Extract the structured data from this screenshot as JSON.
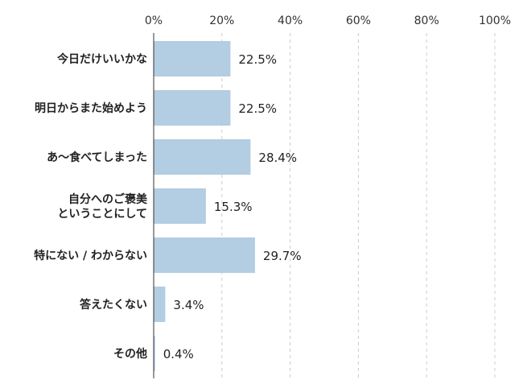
{
  "chart_data": {
    "type": "bar",
    "orientation": "horizontal",
    "title": "",
    "xlabel": "",
    "ylabel": "",
    "xlim": [
      0,
      100
    ],
    "ticks": [
      "0%",
      "20%",
      "40%",
      "60%",
      "80%",
      "100%"
    ],
    "tick_values": [
      0,
      20,
      40,
      60,
      80,
      100
    ],
    "categories": [
      [
        "今日だけいいかな"
      ],
      [
        "明日からまた始めよう"
      ],
      [
        "あ〜食べてしまった"
      ],
      [
        "自分へのご褒美",
        "ということにして"
      ],
      [
        "特にない / わからない"
      ],
      [
        "答えたくない"
      ],
      [
        "その他"
      ]
    ],
    "values": [
      22.5,
      22.5,
      28.4,
      15.3,
      29.7,
      3.4,
      0.4
    ],
    "value_labels": [
      "22.5%",
      "22.5%",
      "28.4%",
      "15.3%",
      "29.7%",
      "3.4%",
      "0.4%"
    ],
    "bar_color": "#b3cde2",
    "grid": true,
    "grid_style": "dashed",
    "legend": "none"
  }
}
